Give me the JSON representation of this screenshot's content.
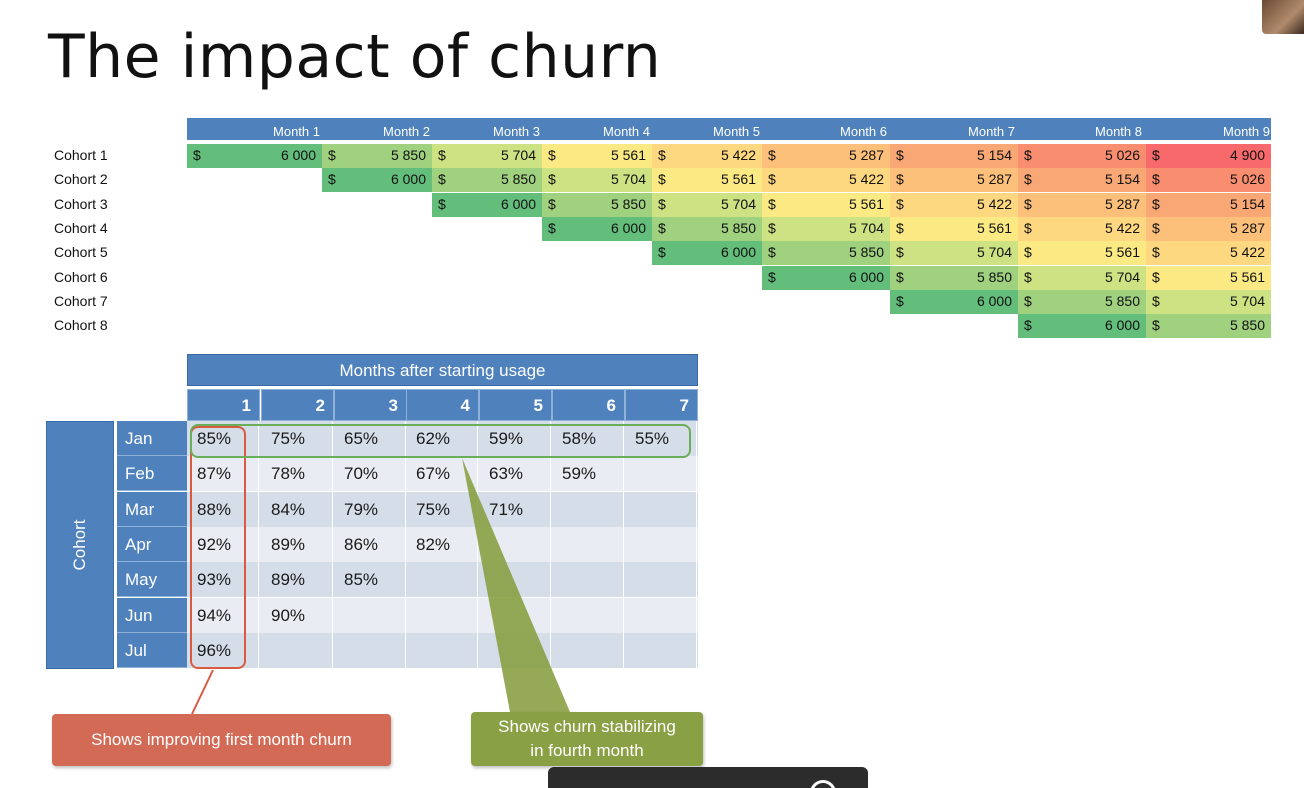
{
  "slide": {
    "title": "The impact of churn"
  },
  "revenue_table": {
    "months": [
      "Month 1",
      "Month 2",
      "Month 3",
      "Month 4",
      "Month 5",
      "Month 6",
      "Month 7",
      "Month 8",
      "Month 9"
    ],
    "currency_symbol": "$",
    "cohorts": [
      {
        "label": "Cohort 1",
        "start": 0,
        "values": [
          "6 000",
          "5 850",
          "5 704",
          "5 561",
          "5 422",
          "5 287",
          "5 154",
          "5 026",
          "4 900"
        ]
      },
      {
        "label": "Cohort 2",
        "start": 1,
        "values": [
          "6 000",
          "5 850",
          "5 704",
          "5 561",
          "5 422",
          "5 287",
          "5 154",
          "5 026"
        ]
      },
      {
        "label": "Cohort 3",
        "start": 2,
        "values": [
          "6 000",
          "5 850",
          "5 704",
          "5 561",
          "5 422",
          "5 287",
          "5 154"
        ]
      },
      {
        "label": "Cohort 4",
        "start": 3,
        "values": [
          "6 000",
          "5 850",
          "5 704",
          "5 561",
          "5 422",
          "5 287"
        ]
      },
      {
        "label": "Cohort 5",
        "start": 4,
        "values": [
          "6 000",
          "5 850",
          "5 704",
          "5 561",
          "5 422"
        ]
      },
      {
        "label": "Cohort 6",
        "start": 5,
        "values": [
          "6 000",
          "5 850",
          "5 704",
          "5 561"
        ]
      },
      {
        "label": "Cohort 7",
        "start": 6,
        "values": [
          "6 000",
          "5 850",
          "5 704"
        ]
      },
      {
        "label": "Cohort 8",
        "start": 7,
        "values": [
          "6 000",
          "5 850"
        ]
      }
    ],
    "heat_colors": [
      "#63be7b",
      "#9fd17f",
      "#cde282",
      "#fbe984",
      "#fed880",
      "#fcc07a",
      "#f9a775",
      "#f88d6f",
      "#f8696b"
    ]
  },
  "retention_table": {
    "header_title": "Months after starting usage",
    "side_label": "Cohort",
    "columns": [
      "1",
      "2",
      "3",
      "4",
      "5",
      "6",
      "7"
    ],
    "rows": [
      {
        "month": "Jan",
        "values": [
          "85%",
          "75%",
          "65%",
          "62%",
          "59%",
          "58%",
          "55%"
        ]
      },
      {
        "month": "Feb",
        "values": [
          "87%",
          "78%",
          "70%",
          "67%",
          "63%",
          "59%",
          ""
        ]
      },
      {
        "month": "Mar",
        "values": [
          "88%",
          "84%",
          "79%",
          "75%",
          "71%",
          "",
          ""
        ]
      },
      {
        "month": "Apr",
        "values": [
          "92%",
          "89%",
          "86%",
          "82%",
          "",
          "",
          ""
        ]
      },
      {
        "month": "May",
        "values": [
          "93%",
          "89%",
          "85%",
          "",
          "",
          "",
          ""
        ]
      },
      {
        "month": "Jun",
        "values": [
          "94%",
          "90%",
          "",
          "",
          "",
          "",
          ""
        ]
      },
      {
        "month": "Jul",
        "values": [
          "96%",
          "",
          "",
          "",
          "",
          "",
          ""
        ]
      }
    ],
    "header_color": "#4f81bd",
    "row_shades": [
      "#d5dde9",
      "#e9edf3"
    ]
  },
  "callouts": {
    "first_month": "Shows improving first month churn",
    "stabilizing_line1": "Shows churn stabilizing",
    "stabilizing_line2": "in fourth month",
    "red_color": "#d36a55",
    "green_color": "#8aa044"
  }
}
